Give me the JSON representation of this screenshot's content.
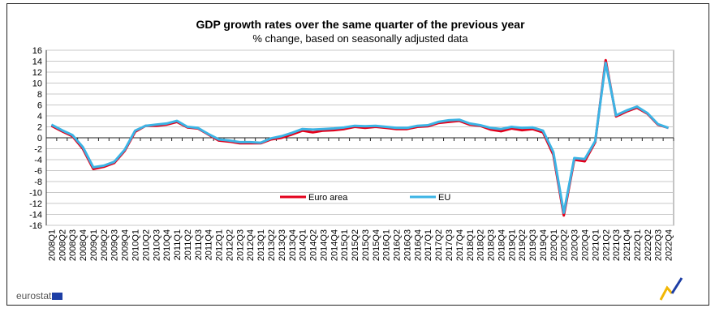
{
  "chart_data": {
    "type": "line",
    "title": "GDP growth rates over the same quarter of the previous year",
    "subtitle": "% change, based on seasonally adjusted data",
    "xlabel": "",
    "ylabel": "",
    "ylim": [
      -16,
      16
    ],
    "yticks": [
      16,
      14,
      12,
      10,
      8,
      6,
      4,
      2,
      0,
      -2,
      -4,
      -6,
      -8,
      -10,
      -12,
      -14,
      -16
    ],
    "grid": true,
    "legend_position": "bottom-center",
    "categories": [
      "2008Q1",
      "2008Q2",
      "2008Q3",
      "2008Q4",
      "2009Q1",
      "2009Q2",
      "2009Q3",
      "2009Q4",
      "2010Q1",
      "2010Q2",
      "2010Q3",
      "2010Q4",
      "2011Q1",
      "2011Q2",
      "2011Q3",
      "2011Q4",
      "2012Q1",
      "2012Q2",
      "2012Q3",
      "2012Q4",
      "2013Q1",
      "2013Q2",
      "2013Q3",
      "2013Q4",
      "2014Q1",
      "2014Q2",
      "2014Q3",
      "2014Q4",
      "2015Q1",
      "2015Q2",
      "2015Q3",
      "2015Q4",
      "2016Q1",
      "2016Q2",
      "2016Q3",
      "2016Q4",
      "2017Q1",
      "2017Q2",
      "2017Q3",
      "2017Q4",
      "2018Q1",
      "2018Q2",
      "2018Q3",
      "2018Q4",
      "2019Q1",
      "2019Q2",
      "2019Q3",
      "2019Q4",
      "2020Q1",
      "2020Q2",
      "2020Q3",
      "2020Q4",
      "2021Q1",
      "2021Q2",
      "2021Q3",
      "2021Q4",
      "2022Q1",
      "2022Q2",
      "2022Q3",
      "2022Q4"
    ],
    "series": [
      {
        "name": "Euro area",
        "color": "#e3001b",
        "values": [
          2.2,
          1.2,
          0.3,
          -2.0,
          -5.7,
          -5.3,
          -4.6,
          -2.4,
          1.1,
          2.2,
          2.2,
          2.4,
          2.9,
          1.9,
          1.7,
          0.6,
          -0.5,
          -0.7,
          -1.0,
          -1.0,
          -1.0,
          -0.3,
          0.0,
          0.6,
          1.3,
          1.0,
          1.3,
          1.4,
          1.6,
          2.0,
          1.8,
          2.0,
          1.8,
          1.6,
          1.6,
          2.0,
          2.1,
          2.7,
          2.9,
          3.1,
          2.4,
          2.2,
          1.5,
          1.2,
          1.7,
          1.4,
          1.6,
          1.0,
          -3.1,
          -14.2,
          -4.0,
          -4.3,
          -0.8,
          14.2,
          3.9,
          4.8,
          5.5,
          4.4,
          2.4,
          1.8
        ]
      },
      {
        "name": "EU",
        "color": "#3cb4e5",
        "values": [
          2.4,
          1.4,
          0.5,
          -1.7,
          -5.4,
          -5.1,
          -4.4,
          -2.2,
          1.3,
          2.2,
          2.4,
          2.6,
          3.1,
          2.0,
          1.8,
          0.7,
          -0.3,
          -0.5,
          -0.8,
          -0.8,
          -0.9,
          -0.1,
          0.3,
          0.9,
          1.6,
          1.5,
          1.6,
          1.7,
          1.9,
          2.2,
          2.1,
          2.2,
          2.0,
          1.8,
          1.8,
          2.2,
          2.3,
          2.9,
          3.2,
          3.3,
          2.6,
          2.3,
          1.8,
          1.6,
          2.0,
          1.8,
          1.9,
          1.3,
          -2.6,
          -13.7,
          -3.7,
          -3.9,
          -0.6,
          13.7,
          4.1,
          5.0,
          5.7,
          4.5,
          2.5,
          1.8
        ]
      }
    ]
  },
  "branding": {
    "logo_text": "eurostat"
  }
}
